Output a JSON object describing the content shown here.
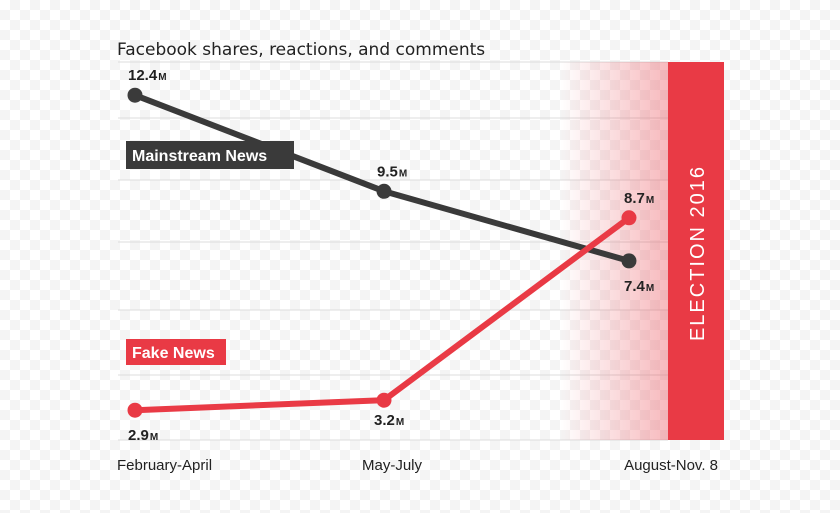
{
  "chart_data": {
    "type": "line",
    "title": "Facebook shares, reactions, and comments",
    "categories": [
      "February-April",
      "May-July",
      "August-Nov. 8"
    ],
    "series": [
      {
        "name": "Mainstream News",
        "values": [
          12.4,
          9.5,
          7.4
        ],
        "labels": [
          "12.4",
          "9.5",
          "7.4"
        ],
        "color": "#3a3a3a"
      },
      {
        "name": "Fake News",
        "values": [
          2.9,
          3.2,
          8.7
        ],
        "labels": [
          "2.9",
          "3.2",
          "8.7"
        ],
        "color": "#e93a45"
      }
    ],
    "unit": "M",
    "ylim": [
      2,
      13.4
    ],
    "grid": true,
    "annotation": "ELECTION 2016",
    "annotation_color": "#e93a45"
  }
}
